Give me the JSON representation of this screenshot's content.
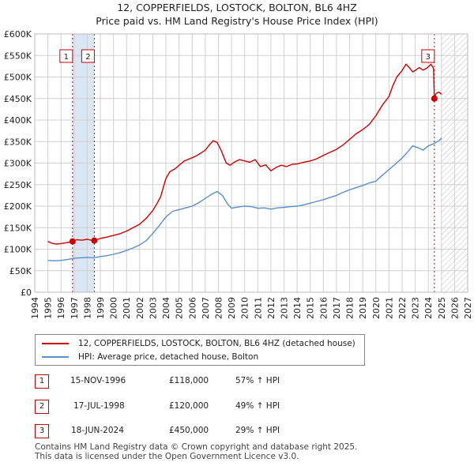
{
  "title_line1": "12, COPPERFIELDS, LOSTOCK, BOLTON, BL6 4HZ",
  "title_line2": "Price paid vs. HM Land Registry's House Price Index (HPI)",
  "colors": {
    "property": "#cc0000",
    "hpi": "#5b8fc9",
    "shade": "#dbe6f5",
    "grid": "#d0d0d0",
    "hatch": "#c8c8c8"
  },
  "chart_data": {
    "type": "line",
    "title": "12, COPPERFIELDS, LOSTOCK, BOLTON, BL6 4HZ - Price paid vs. HM Land Registry's House Price Index (HPI)",
    "xlim": [
      1994,
      2027
    ],
    "ylim": [
      0,
      600000
    ],
    "y_ticks": [
      {
        "value": 0,
        "label": "£0"
      },
      {
        "value": 50000,
        "label": "£50K"
      },
      {
        "value": 100000,
        "label": "£100K"
      },
      {
        "value": 150000,
        "label": "£150K"
      },
      {
        "value": 200000,
        "label": "£200K"
      },
      {
        "value": 250000,
        "label": "£250K"
      },
      {
        "value": 300000,
        "label": "£300K"
      },
      {
        "value": 350000,
        "label": "£350K"
      },
      {
        "value": 400000,
        "label": "£400K"
      },
      {
        "value": 450000,
        "label": "£450K"
      },
      {
        "value": 500000,
        "label": "£500K"
      },
      {
        "value": 550000,
        "label": "£550K"
      },
      {
        "value": 600000,
        "label": "£600K"
      }
    ],
    "x_ticks": [
      "1994",
      "1995",
      "1996",
      "1997",
      "1998",
      "1999",
      "2000",
      "2001",
      "2002",
      "2003",
      "2004",
      "2005",
      "2006",
      "2007",
      "2008",
      "2009",
      "2010",
      "2011",
      "2012",
      "2013",
      "2014",
      "2015",
      "2016",
      "2017",
      "2018",
      "2019",
      "2020",
      "2021",
      "2022",
      "2023",
      "2024",
      "2025",
      "2026",
      "2027"
    ],
    "shaded_period": [
      1996.88,
      1998.54
    ],
    "hatched_from": 2025.0,
    "series": [
      {
        "name": "12, COPPERFIELDS, LOSTOCK, BOLTON, BL6 4HZ (detached house)",
        "color": "#cc0000",
        "x": [
          1995.0,
          1995.3,
          1995.6,
          1996.0,
          1996.4,
          1996.88,
          1997.2,
          1997.6,
          1998.0,
          1998.3,
          1998.54,
          1999.0,
          1999.5,
          2000.0,
          2000.5,
          2001.0,
          2001.5,
          2002.0,
          2002.5,
          2003.0,
          2003.3,
          2003.6,
          2004.0,
          2004.3,
          2004.7,
          2005.0,
          2005.4,
          2005.8,
          2006.2,
          2006.6,
          2007.0,
          2007.3,
          2007.6,
          2007.9,
          2008.2,
          2008.6,
          2008.9,
          2009.2,
          2009.6,
          2010.0,
          2010.4,
          2010.8,
          2011.2,
          2011.6,
          2012.0,
          2012.4,
          2012.8,
          2013.2,
          2013.6,
          2014.0,
          2014.5,
          2015.0,
          2015.5,
          2016.0,
          2016.5,
          2017.0,
          2017.5,
          2018.0,
          2018.5,
          2019.0,
          2019.5,
          2020.0,
          2020.5,
          2021.0,
          2021.3,
          2021.6,
          2022.0,
          2022.3,
          2022.6,
          2022.8,
          2023.0,
          2023.3,
          2023.6,
          2023.9,
          2024.2,
          2024.4,
          2024.46,
          2024.6,
          2024.8,
          2025.0
        ],
        "values": [
          118000,
          114000,
          112000,
          113000,
          115000,
          118000,
          122000,
          121000,
          123000,
          121000,
          120000,
          125000,
          128000,
          132000,
          136000,
          142000,
          150000,
          158000,
          172000,
          190000,
          205000,
          222000,
          265000,
          280000,
          287000,
          295000,
          305000,
          310000,
          315000,
          322000,
          330000,
          342000,
          352000,
          348000,
          330000,
          300000,
          295000,
          302000,
          308000,
          305000,
          302000,
          308000,
          292000,
          296000,
          282000,
          290000,
          295000,
          292000,
          297000,
          298000,
          302000,
          305000,
          310000,
          318000,
          325000,
          332000,
          342000,
          355000,
          368000,
          378000,
          390000,
          410000,
          435000,
          455000,
          480000,
          500000,
          515000,
          530000,
          520000,
          512000,
          515000,
          522000,
          516000,
          521000,
          530000,
          520000,
          450000,
          462000,
          465000,
          460000
        ],
        "label": "detached house"
      },
      {
        "name": "HPI: Average price, detached house, Bolton",
        "color": "#5b8fc9",
        "x": [
          1995.0,
          1995.5,
          1996.0,
          1996.5,
          1997.0,
          1997.5,
          1998.0,
          1998.5,
          1999.0,
          1999.5,
          2000.0,
          2000.5,
          2001.0,
          2001.5,
          2002.0,
          2002.5,
          2003.0,
          2003.5,
          2004.0,
          2004.5,
          2005.0,
          2005.5,
          2006.0,
          2006.5,
          2007.0,
          2007.5,
          2007.9,
          2008.3,
          2008.7,
          2009.0,
          2009.5,
          2010.0,
          2010.5,
          2011.0,
          2011.5,
          2012.0,
          2012.5,
          2013.0,
          2013.5,
          2014.0,
          2014.5,
          2015.0,
          2015.5,
          2016.0,
          2016.5,
          2017.0,
          2017.5,
          2018.0,
          2018.5,
          2019.0,
          2019.5,
          2020.0,
          2020.5,
          2021.0,
          2021.5,
          2022.0,
          2022.4,
          2022.8,
          2023.2,
          2023.6,
          2024.0,
          2024.4,
          2024.8,
          2025.0
        ],
        "values": [
          74000,
          73000,
          74000,
          76000,
          79000,
          80000,
          81000,
          80000,
          83000,
          85000,
          88000,
          92000,
          97000,
          103000,
          110000,
          120000,
          137000,
          155000,
          175000,
          188000,
          192000,
          196000,
          200000,
          208000,
          218000,
          228000,
          234000,
          225000,
          205000,
          195000,
          198000,
          200000,
          199000,
          195000,
          196000,
          193000,
          196000,
          197000,
          199000,
          200000,
          203000,
          207000,
          211000,
          215000,
          220000,
          225000,
          232000,
          238000,
          243000,
          248000,
          254000,
          258000,
          272000,
          285000,
          298000,
          312000,
          325000,
          340000,
          336000,
          330000,
          340000,
          345000,
          352000,
          358000
        ]
      }
    ],
    "markers": [
      {
        "id": "1",
        "x": 1996.88,
        "value": 118000
      },
      {
        "id": "2",
        "x": 1998.54,
        "value": 120000
      },
      {
        "id": "3",
        "x": 2024.46,
        "value": 450000
      }
    ]
  },
  "legend": {
    "property": "12, COPPERFIELDS, LOSTOCK, BOLTON, BL6 4HZ (detached house)",
    "hpi": "HPI: Average price, detached house, Bolton"
  },
  "transactions": [
    {
      "num": "1",
      "date": "15-NOV-1996",
      "price": "£118,000",
      "hpi": "57% ↑ HPI"
    },
    {
      "num": "2",
      "date": "17-JUL-1998",
      "price": "£120,000",
      "hpi": "49% ↑ HPI"
    },
    {
      "num": "3",
      "date": "18-JUN-2024",
      "price": "£450,000",
      "hpi": "29% ↑ HPI"
    }
  ],
  "footer": {
    "line1": "Contains HM Land Registry data © Crown copyright and database right 2025.",
    "line2": "This data is licensed under the Open Government Licence v3.0."
  }
}
